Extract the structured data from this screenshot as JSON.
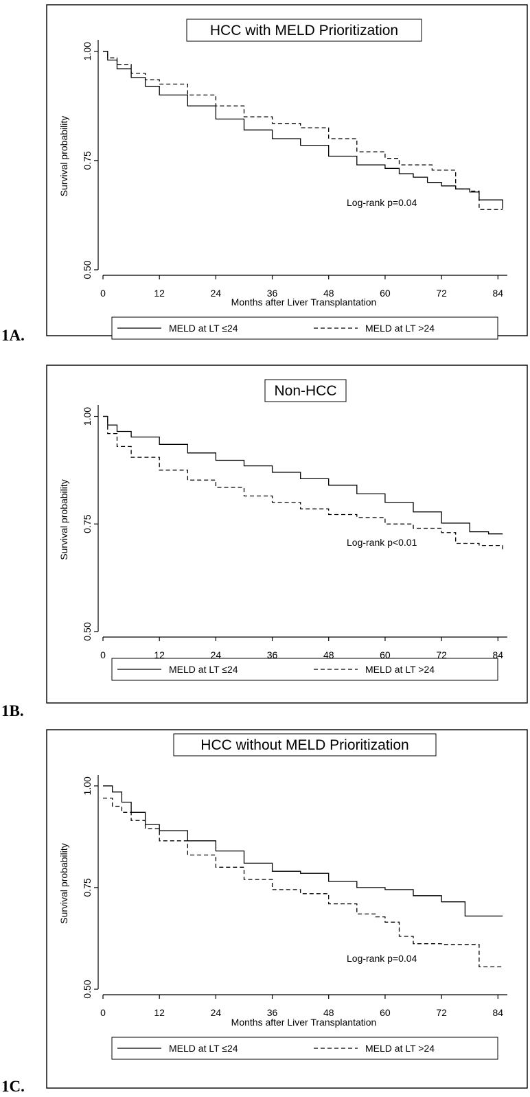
{
  "figure_top_fragment": "",
  "chart_data": [
    {
      "panel_label": "1A.",
      "type": "line",
      "title": "HCC with MELD Prioritization",
      "xlabel": "Months after Liver Transplantation",
      "ylabel": "Survival probability",
      "xlim": [
        0,
        86
      ],
      "ylim": [
        0.5,
        1.02
      ],
      "xticks": [
        0,
        12,
        24,
        36,
        48,
        60,
        72,
        84
      ],
      "yticks": [
        0.5,
        0.75,
        1.0
      ],
      "ytick_labels": [
        "0.50",
        "0.75",
        "1.00"
      ],
      "annotation": "Log-rank p=0.04",
      "legend_position": "bottom",
      "series": [
        {
          "name": "MELD at LT ≤24",
          "style": "solid",
          "x": [
            0,
            1,
            3,
            6,
            9,
            12,
            18,
            24,
            30,
            36,
            42,
            48,
            54,
            60,
            63,
            66,
            69,
            72,
            75,
            78,
            80,
            85
          ],
          "y": [
            1.0,
            0.98,
            0.96,
            0.94,
            0.92,
            0.9,
            0.875,
            0.845,
            0.82,
            0.8,
            0.785,
            0.76,
            0.74,
            0.732,
            0.72,
            0.712,
            0.7,
            0.692,
            0.685,
            0.678,
            0.66,
            0.64
          ]
        },
        {
          "name": "MELD at LT >24",
          "style": "dashed",
          "x": [
            0,
            1,
            3,
            6,
            9,
            12,
            18,
            24,
            30,
            36,
            42,
            48,
            54,
            57,
            60,
            63,
            66,
            70,
            75,
            78,
            80,
            85
          ],
          "y": [
            1.0,
            0.985,
            0.97,
            0.95,
            0.935,
            0.925,
            0.9,
            0.875,
            0.85,
            0.835,
            0.825,
            0.8,
            0.77,
            0.77,
            0.755,
            0.74,
            0.74,
            0.728,
            0.685,
            0.68,
            0.638,
            0.638
          ]
        }
      ]
    },
    {
      "panel_label": "1B.",
      "type": "line",
      "title": "Non-HCC",
      "xlabel": "Months after Liver Transplantation",
      "ylabel": "Survival probability",
      "xlim": [
        0,
        86
      ],
      "ylim": [
        0.5,
        1.02
      ],
      "xticks": [
        0,
        12,
        24,
        36,
        48,
        60,
        72,
        84
      ],
      "yticks": [
        0.5,
        0.75,
        1.0
      ],
      "ytick_labels": [
        "0.50",
        "0.75",
        "1.00"
      ],
      "annotation": "Log-rank p<0.01",
      "legend_position": "bottom",
      "series": [
        {
          "name": "MELD at LT ≤24",
          "style": "solid",
          "x": [
            0,
            1,
            3,
            6,
            12,
            18,
            24,
            30,
            36,
            42,
            48,
            54,
            60,
            66,
            72,
            78,
            82,
            85
          ],
          "y": [
            1.0,
            0.98,
            0.965,
            0.952,
            0.935,
            0.915,
            0.898,
            0.885,
            0.87,
            0.855,
            0.84,
            0.82,
            0.8,
            0.778,
            0.752,
            0.732,
            0.727,
            0.727
          ]
        },
        {
          "name": "MELD at LT >24",
          "style": "dashed",
          "x": [
            0,
            1,
            3,
            6,
            12,
            18,
            24,
            30,
            36,
            42,
            48,
            54,
            60,
            66,
            72,
            75,
            80,
            85
          ],
          "y": [
            1.0,
            0.96,
            0.93,
            0.905,
            0.875,
            0.852,
            0.835,
            0.815,
            0.8,
            0.785,
            0.772,
            0.765,
            0.75,
            0.74,
            0.73,
            0.705,
            0.7,
            0.685
          ]
        }
      ]
    },
    {
      "panel_label": "1C.",
      "type": "line",
      "title": "HCC without MELD Prioritization",
      "xlabel": "Months after Liver Transplantation",
      "ylabel": "Survival probability",
      "xlim": [
        0,
        86
      ],
      "ylim": [
        0.5,
        1.02
      ],
      "xticks": [
        0,
        12,
        24,
        36,
        48,
        60,
        72,
        84
      ],
      "yticks": [
        0.5,
        0.75,
        1.0
      ],
      "ytick_labels": [
        "0.50",
        "0.75",
        "1.00"
      ],
      "annotation": "Log-rank p=0.04",
      "legend_position": "bottom",
      "series": [
        {
          "name": "MELD at LT ≤24",
          "style": "solid",
          "x": [
            0,
            2,
            4,
            6,
            9,
            12,
            18,
            24,
            30,
            36,
            42,
            48,
            54,
            60,
            66,
            72,
            77,
            85
          ],
          "y": [
            1.0,
            0.985,
            0.96,
            0.935,
            0.905,
            0.89,
            0.865,
            0.84,
            0.81,
            0.79,
            0.785,
            0.765,
            0.75,
            0.745,
            0.73,
            0.715,
            0.68,
            0.68
          ]
        },
        {
          "name": "MELD at LT >24",
          "style": "dashed",
          "x": [
            0,
            2,
            4,
            6,
            9,
            12,
            18,
            24,
            30,
            36,
            42,
            48,
            54,
            58,
            60,
            63,
            66,
            72,
            76,
            80,
            85
          ],
          "y": [
            0.97,
            0.95,
            0.935,
            0.915,
            0.895,
            0.865,
            0.83,
            0.8,
            0.77,
            0.745,
            0.735,
            0.71,
            0.685,
            0.678,
            0.665,
            0.63,
            0.612,
            0.61,
            0.61,
            0.555,
            0.555
          ]
        }
      ]
    }
  ]
}
